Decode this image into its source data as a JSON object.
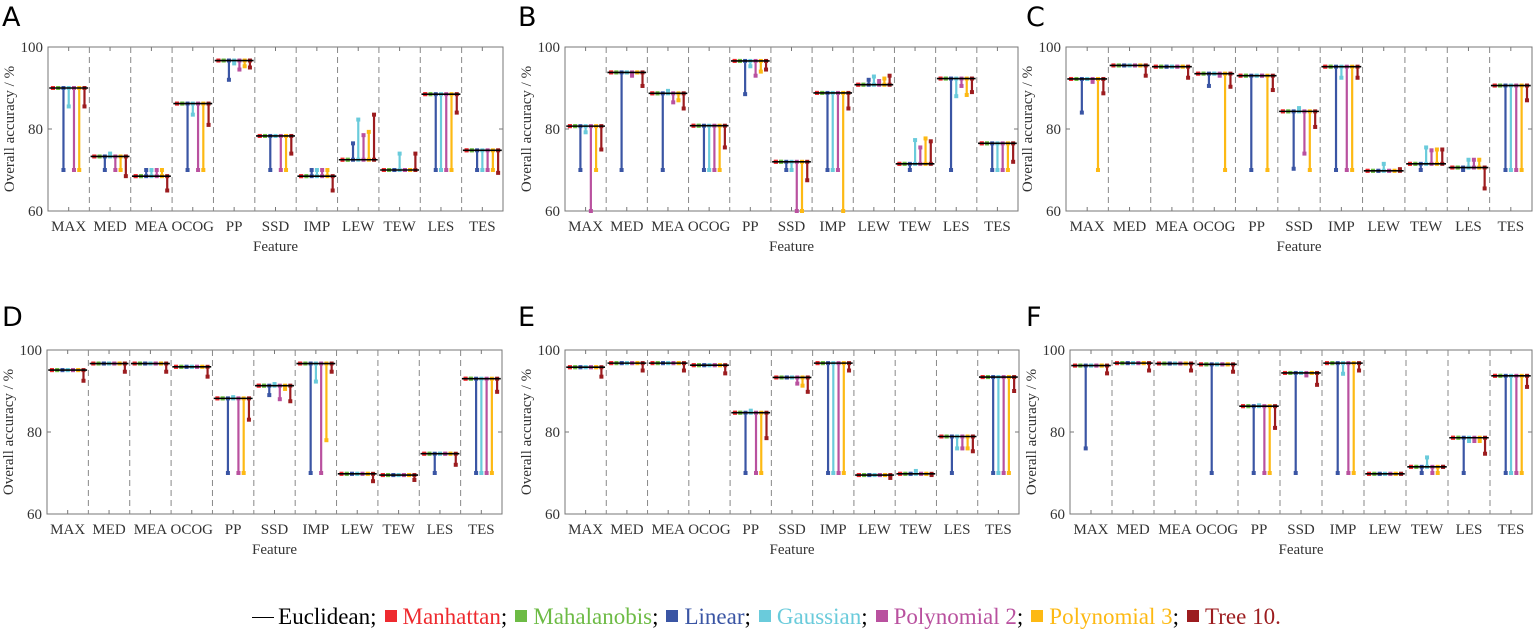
{
  "legend": {
    "items": [
      {
        "name": "Euclidean",
        "color": "#000000",
        "style": "line"
      },
      {
        "name": "Manhattan",
        "color": "#ee2a2f",
        "style": "square"
      },
      {
        "name": "Mahalanobis",
        "color": "#6dbb45",
        "style": "square"
      },
      {
        "name": "Linear",
        "color": "#3a55a4",
        "style": "square"
      },
      {
        "name": "Gaussian",
        "color": "#6acbdb",
        "style": "square"
      },
      {
        "name": "Polynomial 2",
        "color": "#b9519f",
        "style": "square"
      },
      {
        "name": "Polynomial 3",
        "color": "#fdb913",
        "style": "square"
      },
      {
        "name": "Tree 10.",
        "color": "#9c1c1f",
        "style": "square"
      }
    ],
    "separator": ";"
  },
  "chart_data": [
    {
      "panel": "A",
      "type": "bar",
      "xlabel": "Feature",
      "ylabel": "Overall accuracy / %",
      "ylim": [
        60,
        100
      ],
      "yticks": [
        "60",
        "80",
        "100"
      ],
      "categories": [
        "MAX",
        "MED",
        "MEA",
        "OCOG",
        "PP",
        "SSD",
        "IMP",
        "LEW",
        "TEW",
        "LES",
        "TES"
      ],
      "series": [
        {
          "name": "Euclidean",
          "values": [
            90,
            73.3,
            68.5,
            86.2,
            96.7,
            78.3,
            68.5,
            72.5,
            70,
            88.5,
            74.8
          ]
        },
        {
          "name": "Manhattan",
          "values": [
            90,
            73.3,
            68.5,
            86.2,
            96.7,
            78.3,
            68.5,
            72.5,
            70,
            88.5,
            74.8
          ]
        },
        {
          "name": "Mahalanobis",
          "values": [
            90,
            73.3,
            68.5,
            86.2,
            96.7,
            78.3,
            68.5,
            72.5,
            70,
            88.5,
            74.8
          ]
        },
        {
          "name": "Linear",
          "values": [
            70,
            70,
            70,
            70,
            92,
            70,
            70,
            76.5,
            70,
            70,
            70
          ]
        },
        {
          "name": "Gaussian",
          "values": [
            85.5,
            74,
            70,
            83.5,
            96,
            78.3,
            70,
            82.3,
            74,
            70,
            70
          ]
        },
        {
          "name": "Polynomial 2",
          "values": [
            70,
            70,
            70,
            70,
            94.5,
            70,
            70,
            78.5,
            70,
            70,
            70
          ]
        },
        {
          "name": "Polynomial 3",
          "values": [
            70,
            70,
            70,
            70,
            95.3,
            70,
            70,
            79.3,
            70,
            70,
            70
          ]
        },
        {
          "name": "Tree 10",
          "values": [
            85.5,
            68.5,
            65,
            81,
            95,
            74,
            65,
            83.5,
            74,
            84,
            69.3
          ]
        }
      ]
    },
    {
      "panel": "B",
      "type": "bar",
      "xlabel": "Feature",
      "ylabel": "Overall accuracy / %",
      "ylim": [
        60,
        100
      ],
      "yticks": [
        "60",
        "80",
        "100"
      ],
      "categories": [
        "MAX",
        "MED",
        "MEA",
        "OCOG",
        "PP",
        "SSD",
        "IMP",
        "LEW",
        "TEW",
        "LES",
        "TES"
      ],
      "series": [
        {
          "name": "Euclidean",
          "values": [
            80.7,
            93.8,
            88.7,
            80.8,
            96.6,
            72,
            88.8,
            90.8,
            71.5,
            92.3,
            76.5
          ]
        },
        {
          "name": "Manhattan",
          "values": [
            80.7,
            93.8,
            88.7,
            80.8,
            96.6,
            72,
            88.8,
            90.8,
            71.5,
            92.3,
            76.5
          ]
        },
        {
          "name": "Mahalanobis",
          "values": [
            80.7,
            93.8,
            88.7,
            80.8,
            96.6,
            72,
            88.8,
            90.8,
            71.5,
            92.3,
            76.5
          ]
        },
        {
          "name": "Linear",
          "values": [
            70,
            70,
            70,
            70,
            88.5,
            70,
            70,
            92,
            70,
            70,
            70
          ]
        },
        {
          "name": "Gaussian",
          "values": [
            79.2,
            93.8,
            89.3,
            70,
            95.3,
            70,
            70,
            92.8,
            77.3,
            88,
            70
          ]
        },
        {
          "name": "Polynomial 2",
          "values": [
            60,
            93,
            86.5,
            70,
            93,
            60,
            70,
            91.7,
            75.5,
            90.5,
            70
          ]
        },
        {
          "name": "Polynomial 3",
          "values": [
            70,
            93.8,
            87,
            70,
            94,
            60,
            60,
            92.3,
            77.7,
            88.3,
            70
          ]
        },
        {
          "name": "Tree 10",
          "values": [
            75,
            90.5,
            85,
            75.5,
            94.5,
            67.5,
            85,
            93,
            77,
            89,
            72
          ]
        }
      ]
    },
    {
      "panel": "C",
      "type": "bar",
      "xlabel": "Feature",
      "ylabel": "Overall accuracy / %",
      "ylim": [
        60,
        100
      ],
      "yticks": [
        "60",
        "80",
        "100"
      ],
      "categories": [
        "MAX",
        "MED",
        "MEA",
        "OCOG",
        "PP",
        "SSD",
        "IMP",
        "LEW",
        "TEW",
        "LES",
        "TES"
      ],
      "series": [
        {
          "name": "Euclidean",
          "values": [
            92.2,
            95.5,
            95.2,
            93.5,
            93,
            84.3,
            95.2,
            69.8,
            71.5,
            70.6,
            90.6
          ]
        },
        {
          "name": "Manhattan",
          "values": [
            92.2,
            95.5,
            95.2,
            93.5,
            93,
            84.3,
            95.2,
            69.8,
            71.5,
            70.6,
            90.6
          ]
        },
        {
          "name": "Mahalanobis",
          "values": [
            92.2,
            95.5,
            95.2,
            93.5,
            93,
            84.3,
            95.2,
            69.8,
            71.5,
            70.6,
            90.6
          ]
        },
        {
          "name": "Linear",
          "values": [
            84,
            95.5,
            95.2,
            90.5,
            70,
            70.3,
            70,
            69.8,
            70,
            70,
            70
          ]
        },
        {
          "name": "Gaussian",
          "values": [
            92.2,
            95.5,
            95.2,
            93.5,
            93,
            85.1,
            92.5,
            71.5,
            75.5,
            72.5,
            70
          ]
        },
        {
          "name": "Polynomial 2",
          "values": [
            91.5,
            95.5,
            95.2,
            93,
            93,
            74,
            70,
            69.8,
            74.8,
            72.5,
            70
          ]
        },
        {
          "name": "Polynomial 3",
          "values": [
            70,
            95.5,
            95.2,
            70,
            70,
            70,
            70,
            69.8,
            75,
            72.5,
            70
          ]
        },
        {
          "name": "Tree 10",
          "values": [
            88.7,
            93,
            92.5,
            90.3,
            89.5,
            80.5,
            92.5,
            70.2,
            75,
            65.5,
            87
          ]
        }
      ]
    },
    {
      "panel": "D",
      "type": "bar",
      "xlabel": "Feature",
      "ylabel": "Overall accuracy / %",
      "ylim": [
        60,
        100
      ],
      "yticks": [
        "60",
        "80",
        "100"
      ],
      "categories": [
        "MAX",
        "MED",
        "MEA",
        "OCOG",
        "PP",
        "SSD",
        "IMP",
        "LEW",
        "TEW",
        "LES",
        "TES"
      ],
      "series": [
        {
          "name": "Euclidean",
          "values": [
            95.1,
            96.7,
            96.7,
            95.9,
            88.2,
            91.3,
            96.7,
            69.8,
            69.5,
            74.7,
            93
          ]
        },
        {
          "name": "Manhattan",
          "values": [
            95.1,
            96.7,
            96.7,
            95.9,
            88.2,
            91.3,
            96.7,
            69.8,
            69.5,
            74.7,
            93
          ]
        },
        {
          "name": "Mahalanobis",
          "values": [
            95.1,
            96.7,
            96.7,
            95.9,
            88.2,
            91.3,
            96.7,
            69.8,
            69.5,
            74.7,
            93
          ]
        },
        {
          "name": "Linear",
          "values": [
            95.1,
            96.7,
            96.7,
            95.9,
            70,
            89,
            70,
            69.8,
            69.5,
            70,
            70
          ]
        },
        {
          "name": "Gaussian",
          "values": [
            95.1,
            96.7,
            96.7,
            95.9,
            88.5,
            91.7,
            92.3,
            69.8,
            69.5,
            74.7,
            70
          ]
        },
        {
          "name": "Polynomial 2",
          "values": [
            95.1,
            96.7,
            96.7,
            95.9,
            70,
            88,
            70,
            69.8,
            69.5,
            74.7,
            70
          ]
        },
        {
          "name": "Polynomial 3",
          "values": [
            95.1,
            96.7,
            96.7,
            95.9,
            70,
            90.5,
            78,
            69.8,
            69.5,
            74.7,
            70
          ]
        },
        {
          "name": "Tree 10",
          "values": [
            92.5,
            94.7,
            94.7,
            93.5,
            83,
            87.5,
            94.7,
            68,
            68.3,
            72,
            89.8
          ]
        }
      ]
    },
    {
      "panel": "E",
      "type": "bar",
      "xlabel": "Feature",
      "ylabel": "Overall accuracy / %",
      "ylim": [
        60,
        100
      ],
      "yticks": [
        "60",
        "80",
        "100"
      ],
      "categories": [
        "MAX",
        "MED",
        "MEA",
        "OCOG",
        "PP",
        "SSD",
        "IMP",
        "LEW",
        "TEW",
        "LES",
        "TES"
      ],
      "series": [
        {
          "name": "Euclidean",
          "values": [
            95.8,
            96.8,
            96.8,
            96.3,
            84.7,
            93.3,
            96.8,
            69.5,
            69.8,
            78.9,
            93.4
          ]
        },
        {
          "name": "Manhattan",
          "values": [
            95.8,
            96.8,
            96.8,
            96.3,
            84.7,
            93.3,
            96.8,
            69.5,
            69.8,
            78.9,
            93.4
          ]
        },
        {
          "name": "Mahalanobis",
          "values": [
            95.8,
            96.8,
            96.8,
            96.3,
            84.7,
            93.3,
            96.8,
            69.5,
            69.8,
            78.9,
            93.4
          ]
        },
        {
          "name": "Linear",
          "values": [
            95.8,
            96.8,
            96.8,
            96.3,
            70,
            93.3,
            70,
            69.5,
            69.8,
            70,
            70
          ]
        },
        {
          "name": "Gaussian",
          "values": [
            95.8,
            96.8,
            96.8,
            96.3,
            85.2,
            93.3,
            70,
            69.5,
            70.5,
            76,
            70
          ]
        },
        {
          "name": "Polynomial 2",
          "values": [
            95.8,
            96.8,
            96.8,
            96.3,
            70,
            91.8,
            70,
            69.5,
            69.8,
            76,
            70
          ]
        },
        {
          "name": "Polynomial 3",
          "values": [
            95.8,
            96.8,
            96.8,
            96.3,
            70,
            91.3,
            70,
            69.5,
            69.8,
            76,
            70
          ]
        },
        {
          "name": "Tree 10",
          "values": [
            93.5,
            95,
            95,
            94.3,
            78.5,
            89.8,
            95,
            68.8,
            69.5,
            75.3,
            90
          ]
        }
      ]
    },
    {
      "panel": "F",
      "type": "bar",
      "xlabel": "Feature",
      "ylabel": "Overall accuracy / %",
      "ylim": [
        60,
        100
      ],
      "yticks": [
        "60",
        "80",
        "100"
      ],
      "categories": [
        "MAX",
        "MED",
        "MEA",
        "OCOG",
        "PP",
        "SSD",
        "IMP",
        "LEW",
        "TEW",
        "LES",
        "TES"
      ],
      "series": [
        {
          "name": "Euclidean",
          "values": [
            96.2,
            96.8,
            96.7,
            96.5,
            86.3,
            94.4,
            96.8,
            69.8,
            71.5,
            78.6,
            93.7
          ]
        },
        {
          "name": "Manhattan",
          "values": [
            96.2,
            96.8,
            96.7,
            96.5,
            86.3,
            94.4,
            96.8,
            69.8,
            71.5,
            78.6,
            93.7
          ]
        },
        {
          "name": "Mahalanobis",
          "values": [
            96.2,
            96.8,
            96.7,
            96.5,
            86.3,
            94.4,
            96.8,
            69.8,
            71.5,
            78.6,
            93.7
          ]
        },
        {
          "name": "Linear",
          "values": [
            76,
            96.8,
            96.7,
            70,
            70,
            70,
            70,
            69.8,
            70,
            70,
            70
          ]
        },
        {
          "name": "Gaussian",
          "values": [
            96.2,
            96.8,
            96.7,
            96.5,
            86.5,
            94.4,
            94.2,
            69.8,
            73.8,
            77.8,
            70
          ]
        },
        {
          "name": "Polynomial 2",
          "values": [
            96.2,
            96.8,
            96.7,
            96.5,
            70,
            93.8,
            70,
            69.8,
            70,
            77.8,
            70
          ]
        },
        {
          "name": "Polynomial 3",
          "values": [
            96.2,
            96.8,
            96.7,
            96.5,
            70,
            94.4,
            70,
            69.8,
            70,
            77.8,
            70
          ]
        },
        {
          "name": "Tree 10",
          "values": [
            94.3,
            95,
            95,
            94.7,
            81,
            91.5,
            95,
            69.8,
            71.5,
            74.7,
            91
          ]
        }
      ]
    }
  ]
}
